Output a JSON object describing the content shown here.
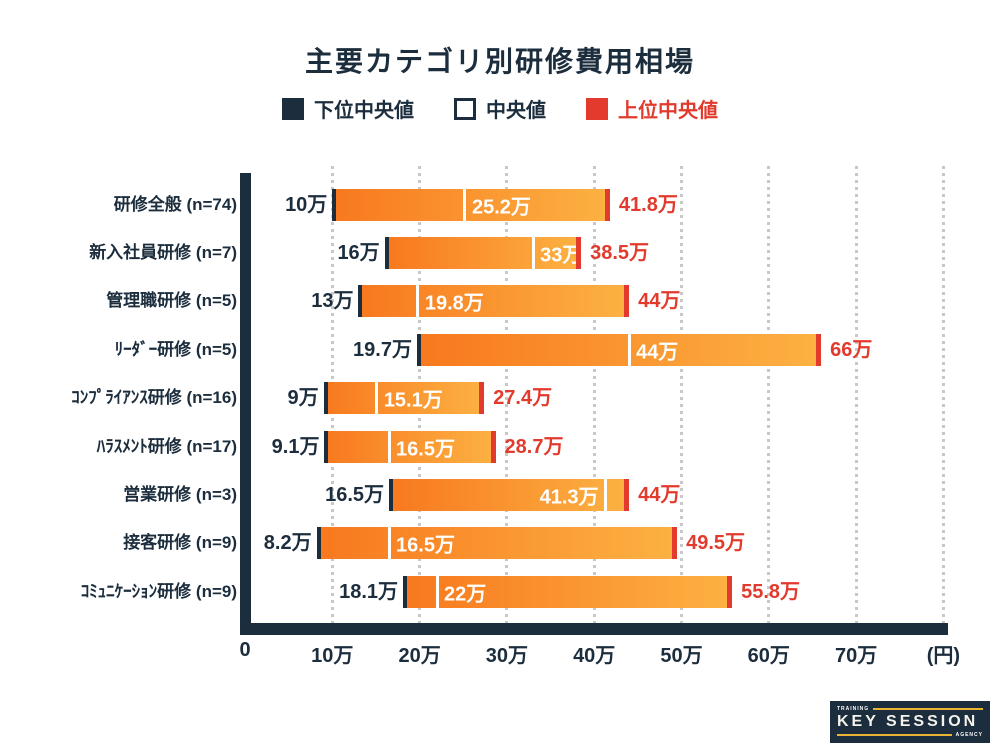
{
  "title": "主要カテゴリ別研修費用相場",
  "legend": {
    "items": [
      {
        "label": "下位中央値",
        "swatch": "navy"
      },
      {
        "label": "中央値",
        "swatch": "white"
      },
      {
        "label": "上位中央値",
        "swatch": "red"
      }
    ]
  },
  "colors": {
    "navy": "#1c2d3d",
    "red": "#e23a2c",
    "bar_gradient_start": "#f8781e",
    "bar_gradient_end": "#fcb242",
    "grid": "#c8c8c8",
    "gold": "#e9b42f"
  },
  "chart_data": {
    "type": "bar",
    "orientation": "horizontal",
    "title": "主要カテゴリ別研修費用相場",
    "value_unit": "万円",
    "series_names": [
      "下位中央値",
      "中央値",
      "上位中央値"
    ],
    "x_axis": {
      "min": 0,
      "max": 80,
      "grid": true,
      "unit_suffix_label": "(円)",
      "ticks": [
        {
          "label": "0",
          "value": 0
        },
        {
          "label": "10万",
          "value": 10
        },
        {
          "label": "20万",
          "value": 20
        },
        {
          "label": "30万",
          "value": 30
        },
        {
          "label": "40万",
          "value": 40
        },
        {
          "label": "50万",
          "value": 50
        },
        {
          "label": "60万",
          "value": 60
        },
        {
          "label": "70万",
          "value": 70
        },
        {
          "label": "(円)",
          "value": 80
        }
      ],
      "grid_values": [
        10,
        20,
        30,
        40,
        50,
        60,
        70,
        80
      ]
    },
    "rows": [
      {
        "category": "研修全般 (n=74)",
        "lower": 10,
        "median": 25.2,
        "upper": 41.8,
        "lower_label": "10万",
        "median_label": "25.2万",
        "upper_label": "41.8万",
        "median_label_side": "right"
      },
      {
        "category": "新入社員研修 (n=7)",
        "lower": 16,
        "median": 33,
        "upper": 38.5,
        "lower_label": "16万",
        "median_label": "33万",
        "upper_label": "38.5万",
        "median_label_side": "right"
      },
      {
        "category": "管理職研修 (n=5)",
        "lower": 13,
        "median": 19.8,
        "upper": 44,
        "lower_label": "13万",
        "median_label": "19.8万",
        "upper_label": "44万",
        "median_label_side": "right"
      },
      {
        "category": "ﾘｰﾀﾞｰ研修 (n=5)",
        "lower": 19.7,
        "median": 44,
        "upper": 66,
        "lower_label": "19.7万",
        "median_label": "44万",
        "upper_label": "66万",
        "median_label_side": "right"
      },
      {
        "category": "ｺﾝﾌﾟﾗｲｱﾝｽ研修 (n=16)",
        "lower": 9,
        "median": 15.1,
        "upper": 27.4,
        "lower_label": "9万",
        "median_label": "15.1万",
        "upper_label": "27.4万",
        "median_label_side": "right"
      },
      {
        "category": "ﾊﾗｽﾒﾝﾄ研修 (n=17)",
        "lower": 9.1,
        "median": 16.5,
        "upper": 28.7,
        "lower_label": "9.1万",
        "median_label": "16.5万",
        "upper_label": "28.7万",
        "median_label_side": "right"
      },
      {
        "category": "営業研修 (n=3)",
        "lower": 16.5,
        "median": 41.3,
        "upper": 44,
        "lower_label": "16.5万",
        "median_label": "41.3万",
        "upper_label": "44万",
        "median_label_side": "left"
      },
      {
        "category": "接客研修 (n=9)",
        "lower": 8.2,
        "median": 16.5,
        "upper": 49.5,
        "lower_label": "8.2万",
        "median_label": "16.5万",
        "upper_label": "49.5万",
        "median_label_side": "right"
      },
      {
        "category": "ｺﾐｭﾆｹｰｼｮﾝ研修 (n=9)",
        "lower": 18.1,
        "median": 22,
        "upper": 55.8,
        "lower_label": "18.1万",
        "median_label": "22万",
        "upper_label": "55.8万",
        "median_label_side": "right"
      }
    ]
  },
  "logo": {
    "training": "TRAINING",
    "name": "KEY SESSION",
    "agency": "AGENCY"
  }
}
